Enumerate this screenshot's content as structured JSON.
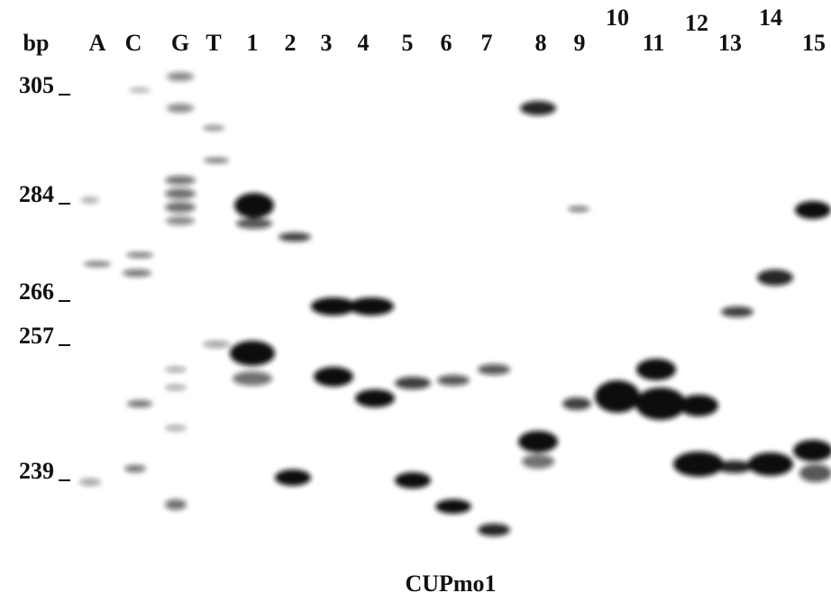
{
  "header": {
    "bp_label": "bp",
    "lanes": [
      "A",
      "C",
      "G",
      "T",
      "1",
      "2",
      "3",
      "4",
      "5",
      "6",
      "7",
      "8",
      "9",
      "10",
      "11",
      "12",
      "13",
      "14",
      "15"
    ]
  },
  "markers": [
    "305",
    "284",
    "266",
    "257",
    "239"
  ],
  "caption": "CUPmo1"
}
